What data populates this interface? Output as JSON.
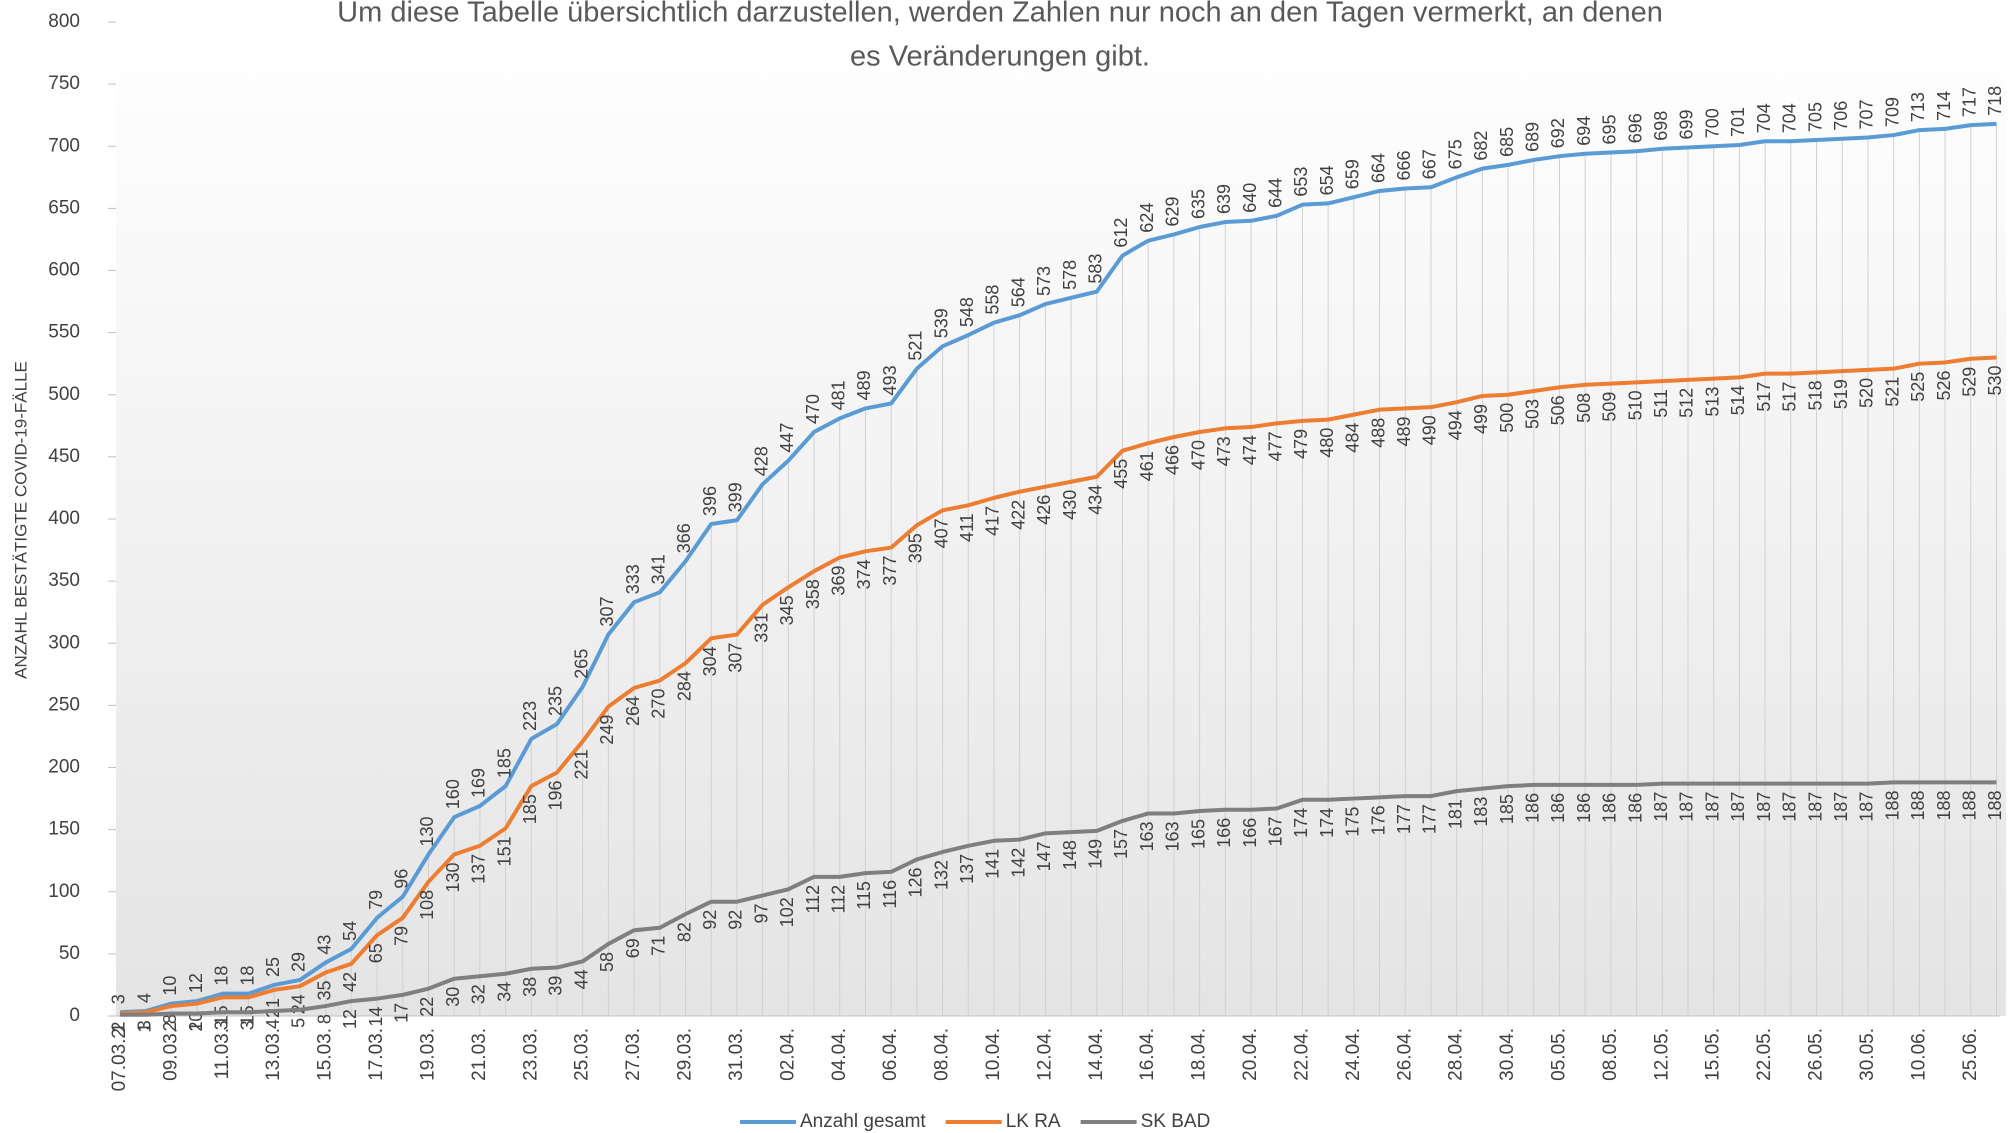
{
  "chart_data": {
    "type": "line",
    "title_lines": [
      "Um diese Tabelle übersichtlich darzustellen, werden Zahlen nur noch an den Tagen vermerkt, an denen",
      "es Veränderungen gibt."
    ],
    "y_label": "ANZAHL BESTÄTIGTE COVID-19-FÄLLE",
    "categories": [
      "07.03.2",
      null,
      "09.03.",
      null,
      "11.03.",
      null,
      "13.03.",
      null,
      "15.03.",
      null,
      "17.03.",
      null,
      "19.03.",
      null,
      "21.03.",
      null,
      "23.03.",
      null,
      "25.03.",
      null,
      "27.03.",
      null,
      "29.03.",
      null,
      "31.03.",
      null,
      "02.04.",
      null,
      "04.04.",
      null,
      "06.04.",
      null,
      "08.04.",
      null,
      "10.04.",
      null,
      "12.04.",
      null,
      "14.04.",
      null,
      "16.04.",
      null,
      "18.04.",
      null,
      "20.04.",
      null,
      "22.04.",
      null,
      "24.04.",
      null,
      "26.04.",
      null,
      "28.04.",
      null,
      "30.04.",
      null,
      "05.05.",
      null,
      "08.05.",
      null,
      "12.05.",
      null,
      "15.05.",
      null,
      "22.05.",
      null,
      "26.05.",
      null,
      "30.05.",
      null,
      "10.06.",
      null,
      "25.06.",
      null
    ],
    "series": [
      {
        "name": "Anzahl gesamt",
        "color": "#5b9bd5",
        "label_pos": "above",
        "values": [
          3,
          4,
          10,
          12,
          18,
          18,
          25,
          29,
          43,
          54,
          79,
          96,
          130,
          160,
          169,
          185,
          223,
          235,
          265,
          307,
          333,
          341,
          366,
          396,
          399,
          428,
          447,
          470,
          481,
          489,
          493,
          521,
          539,
          548,
          558,
          564,
          573,
          578,
          583,
          612,
          624,
          629,
          635,
          639,
          640,
          644,
          653,
          654,
          659,
          664,
          666,
          667,
          675,
          682,
          685,
          689,
          692,
          694,
          695,
          696,
          698,
          699,
          700,
          701,
          704,
          704,
          705,
          706,
          707,
          709,
          713,
          714,
          717,
          718
        ]
      },
      {
        "name": "LK RA",
        "color": "#ed7d31",
        "label_pos": "below",
        "values": [
          2,
          3,
          8,
          10,
          15,
          15,
          21,
          24,
          35,
          42,
          65,
          79,
          108,
          130,
          137,
          151,
          185,
          196,
          221,
          249,
          264,
          270,
          284,
          304,
          307,
          331,
          345,
          358,
          369,
          374,
          377,
          395,
          407,
          411,
          417,
          422,
          426,
          430,
          434,
          455,
          461,
          466,
          470,
          473,
          474,
          477,
          479,
          480,
          484,
          488,
          489,
          490,
          494,
          499,
          500,
          503,
          506,
          508,
          509,
          510,
          511,
          512,
          513,
          514,
          517,
          517,
          518,
          519,
          520,
          521,
          525,
          526,
          529,
          530
        ]
      },
      {
        "name": "SK BAD",
        "color": "#7f7f7f",
        "label_pos": "below",
        "values": [
          1,
          1,
          2,
          2,
          3,
          3,
          4,
          5,
          8,
          12,
          14,
          17,
          22,
          30,
          32,
          34,
          38,
          39,
          44,
          58,
          69,
          71,
          82,
          92,
          92,
          97,
          102,
          112,
          112,
          115,
          116,
          126,
          132,
          137,
          141,
          142,
          147,
          148,
          149,
          157,
          163,
          163,
          165,
          166,
          166,
          167,
          174,
          174,
          175,
          176,
          177,
          177,
          181,
          183,
          185,
          186,
          186,
          186,
          186,
          186,
          187,
          187,
          187,
          187,
          187,
          187,
          187,
          187,
          187,
          188,
          188,
          188,
          188,
          188
        ]
      }
    ],
    "ylim": [
      0,
      800
    ],
    "yticks": [
      0,
      50,
      100,
      150,
      200,
      250,
      300,
      350,
      400,
      450,
      500,
      550,
      600,
      650,
      700,
      750,
      800
    ]
  }
}
